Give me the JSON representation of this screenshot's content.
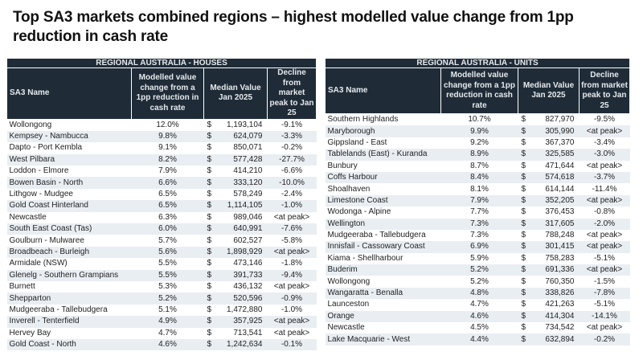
{
  "title": "Top SA3 markets combined regions – highest modelled value change from 1pp reduction in cash rate",
  "colors": {
    "header_bg": "#1f2c38",
    "alt_row_bg": "#e9eef3"
  },
  "columns": {
    "name": "SA3 Name",
    "change": "Modelled value change from a 1pp reduction in cash rate",
    "median": "Median Value Jan 2025",
    "decline": "Decline from market peak to Jan 25"
  },
  "currency_symbol": "$",
  "houses": {
    "heading": "REGIONAL AUSTRALIA - HOUSES",
    "rows": [
      [
        "Wollongong",
        "12.0%",
        "1,193,104",
        "-9.1%"
      ],
      [
        "Kempsey - Nambucca",
        "9.8%",
        "624,079",
        "-3.3%"
      ],
      [
        "Dapto - Port Kembla",
        "9.1%",
        "850,071",
        "-0.2%"
      ],
      [
        "West Pilbara",
        "8.2%",
        "577,428",
        "-27.7%"
      ],
      [
        "Loddon - Elmore",
        "7.9%",
        "414,210",
        "-6.6%"
      ],
      [
        "Bowen Basin - North",
        "6.6%",
        "333,120",
        "-10.0%"
      ],
      [
        "Lithgow - Mudgee",
        "6.5%",
        "578,249",
        "-2.4%"
      ],
      [
        "Gold Coast Hinterland",
        "6.5%",
        "1,114,105",
        "-1.0%"
      ],
      [
        "Newcastle",
        "6.3%",
        "989,046",
        "<at peak>"
      ],
      [
        "South East Coast (Tas)",
        "6.0%",
        "640,991",
        "-7.6%"
      ],
      [
        "Goulburn - Mulwaree",
        "5.7%",
        "602,527",
        "-5.8%"
      ],
      [
        "Broadbeach - Burleigh",
        "5.6%",
        "1,898,929",
        "<at peak>"
      ],
      [
        "Armidale (NSW)",
        "5.5%",
        "473,146",
        "-1.8%"
      ],
      [
        "Glenelg - Southern Grampians",
        "5.5%",
        "391,733",
        "-9.4%"
      ],
      [
        "Burnett",
        "5.3%",
        "436,132",
        "<at peak>"
      ],
      [
        "Shepparton",
        "5.2%",
        "520,596",
        "-0.9%"
      ],
      [
        "Mudgeeraba - Tallebudgera",
        "5.1%",
        "1,472,880",
        "-1.0%"
      ],
      [
        "Inverell - Tenterfield",
        "4.9%",
        "357,925",
        "<at peak>"
      ],
      [
        "Hervey Bay",
        "4.7%",
        "713,541",
        "<at peak>"
      ],
      [
        "Gold Coast - North",
        "4.6%",
        "1,242,634",
        "-0.1%"
      ]
    ]
  },
  "units": {
    "heading": "REGIONAL AUSTRALIA - UNITS",
    "rows": [
      [
        "Southern Highlands",
        "10.7%",
        "827,970",
        "-9.5%"
      ],
      [
        "Maryborough",
        "9.9%",
        "305,990",
        "<at peak>"
      ],
      [
        "Gippsland - East",
        "9.2%",
        "367,370",
        "-3.4%"
      ],
      [
        "Tablelands (East) - Kuranda",
        "8.9%",
        "325,585",
        "-3.0%"
      ],
      [
        "Bunbury",
        "8.7%",
        "471,644",
        "<at peak>"
      ],
      [
        "Coffs Harbour",
        "8.4%",
        "574,618",
        "-3.7%"
      ],
      [
        "Shoalhaven",
        "8.1%",
        "614,144",
        "-11.4%"
      ],
      [
        "Limestone Coast",
        "7.9%",
        "352,205",
        "<at peak>"
      ],
      [
        "Wodonga - Alpine",
        "7.7%",
        "376,453",
        "-0.8%"
      ],
      [
        "Wellington",
        "7.3%",
        "317,605",
        "-2.0%"
      ],
      [
        "Mudgeeraba - Tallebudgera",
        "7.3%",
        "788,248",
        "<at peak>"
      ],
      [
        "Innisfail - Cassowary Coast",
        "6.9%",
        "301,415",
        "<at peak>"
      ],
      [
        "Kiama - Shellharbour",
        "5.9%",
        "758,283",
        "-5.1%"
      ],
      [
        "Buderim",
        "5.2%",
        "691,336",
        "<at peak>"
      ],
      [
        "Wollongong",
        "5.2%",
        "760,350",
        "-1.5%"
      ],
      [
        "Wangaratta - Benalla",
        "4.8%",
        "338,826",
        "-7.8%"
      ],
      [
        "Launceston",
        "4.7%",
        "421,263",
        "-5.1%"
      ],
      [
        "Orange",
        "4.6%",
        "414,304",
        "-14.1%"
      ],
      [
        "Newcastle",
        "4.5%",
        "734,542",
        "<at peak>"
      ],
      [
        "Lake Macquarie - West",
        "4.4%",
        "632,894",
        "-0.2%"
      ]
    ]
  }
}
